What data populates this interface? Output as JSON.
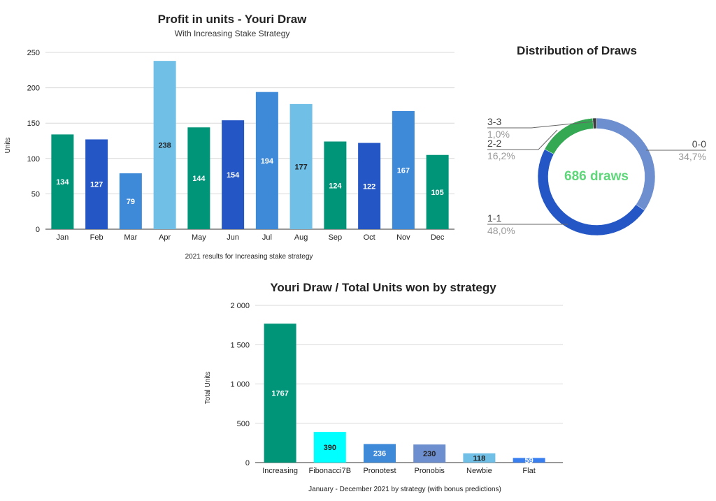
{
  "chart_data": [
    {
      "type": "bar",
      "title": "Profit in units - Youri Draw",
      "subtitle": "With Increasing Stake Strategy",
      "xlabel": "2021 results for Increasing stake strategy",
      "ylabel": "Units",
      "ylim": [
        0,
        250
      ],
      "yticks": [
        "0",
        "50",
        "100",
        "150",
        "200",
        "250"
      ],
      "grid": true,
      "categories": [
        "Jan",
        "Feb",
        "Mar",
        "Apr",
        "May",
        "Jun",
        "Jul",
        "Aug",
        "Sep",
        "Oct",
        "Nov",
        "Dec"
      ],
      "values": [
        134,
        127,
        79,
        238,
        144,
        154,
        194,
        177,
        124,
        122,
        167,
        105
      ],
      "colors": [
        "#009479",
        "#2457c5",
        "#3f89d9",
        "#6fbfe7",
        "#009479",
        "#2457c5",
        "#3f89d9",
        "#6fbfe7",
        "#009479",
        "#2457c5",
        "#3f89d9",
        "#009479"
      ],
      "label_colors": [
        "#ffffff",
        "#ffffff",
        "#ffffff",
        "#222222",
        "#ffffff",
        "#ffffff",
        "#ffffff",
        "#222222",
        "#ffffff",
        "#ffffff",
        "#ffffff",
        "#ffffff"
      ]
    },
    {
      "type": "pie",
      "style": "donut",
      "title": "Distribution of Draws",
      "center_text": "686 draws",
      "center_color": "#5fd67a",
      "slices": [
        {
          "label": "0-0",
          "pct_text": "34,7%",
          "value": 34.7,
          "color": "#6e8fcf"
        },
        {
          "label": "1-1",
          "pct_text": "48,0%",
          "value": 48.0,
          "color": "#2457c5"
        },
        {
          "label": "2-2",
          "pct_text": "16,2%",
          "value": 16.2,
          "color": "#34a853"
        },
        {
          "label": "3-3",
          "pct_text": "1,0%",
          "value": 1.0,
          "color": "#3c3c3c"
        }
      ]
    },
    {
      "type": "bar",
      "title": "Youri Draw / Total Units won by strategy",
      "xlabel": "January - December 2021 by strategy (with bonus predictions)",
      "ylabel": "Total Units",
      "ylim": [
        0,
        2000
      ],
      "yticks": [
        "0",
        "500",
        "1 000",
        "1 500",
        "2 000"
      ],
      "grid": true,
      "categories": [
        "Increasing",
        "Fibonacci7B",
        "Pronotest",
        "Pronobis",
        "Newbie",
        "Flat"
      ],
      "values": [
        1767,
        390,
        236,
        230,
        118,
        59
      ],
      "colors": [
        "#009479",
        "#00ffff",
        "#3f89d9",
        "#6e8fcf",
        "#6fbfe7",
        "#3a7ff0"
      ],
      "label_colors": [
        "#ffffff",
        "#222222",
        "#ffffff",
        "#222222",
        "#222222",
        "#ffffff"
      ]
    }
  ]
}
